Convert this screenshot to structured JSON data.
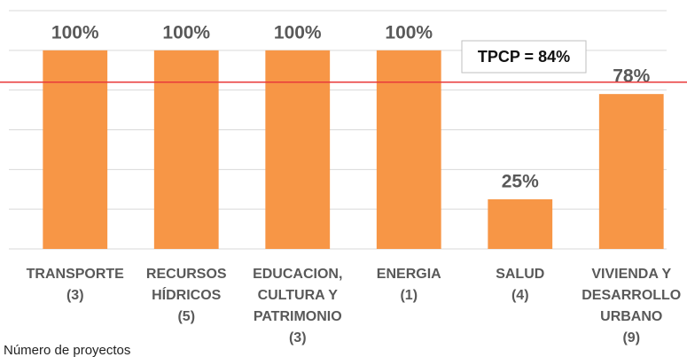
{
  "chart_data": {
    "type": "bar",
    "categories": [
      [
        "TRANSPORTE",
        "(3)"
      ],
      [
        "RECURSOS",
        "HÍDRICOS",
        "(5)"
      ],
      [
        "EDUCACION,",
        "CULTURA Y",
        "PATRIMONIO",
        "(3)"
      ],
      [
        "ENERGIA",
        "(1)"
      ],
      [
        "SALUD",
        "(4)"
      ],
      [
        "VIVIENDA Y",
        "DESARROLLO",
        "URBANO",
        "(9)"
      ]
    ],
    "values": [
      100,
      100,
      100,
      100,
      25,
      78
    ],
    "value_labels": [
      "100%",
      "100%",
      "100%",
      "100%",
      "25%",
      "78%"
    ],
    "color": "#f79646",
    "ylim": [
      0,
      120
    ],
    "yticks": [
      0,
      20,
      40,
      60,
      80,
      100,
      120
    ],
    "grid": true,
    "reference_line": {
      "value": 84,
      "label": "TPCP = 84%",
      "color": "#e8393a"
    },
    "xlabel": "Número de proyectos"
  }
}
